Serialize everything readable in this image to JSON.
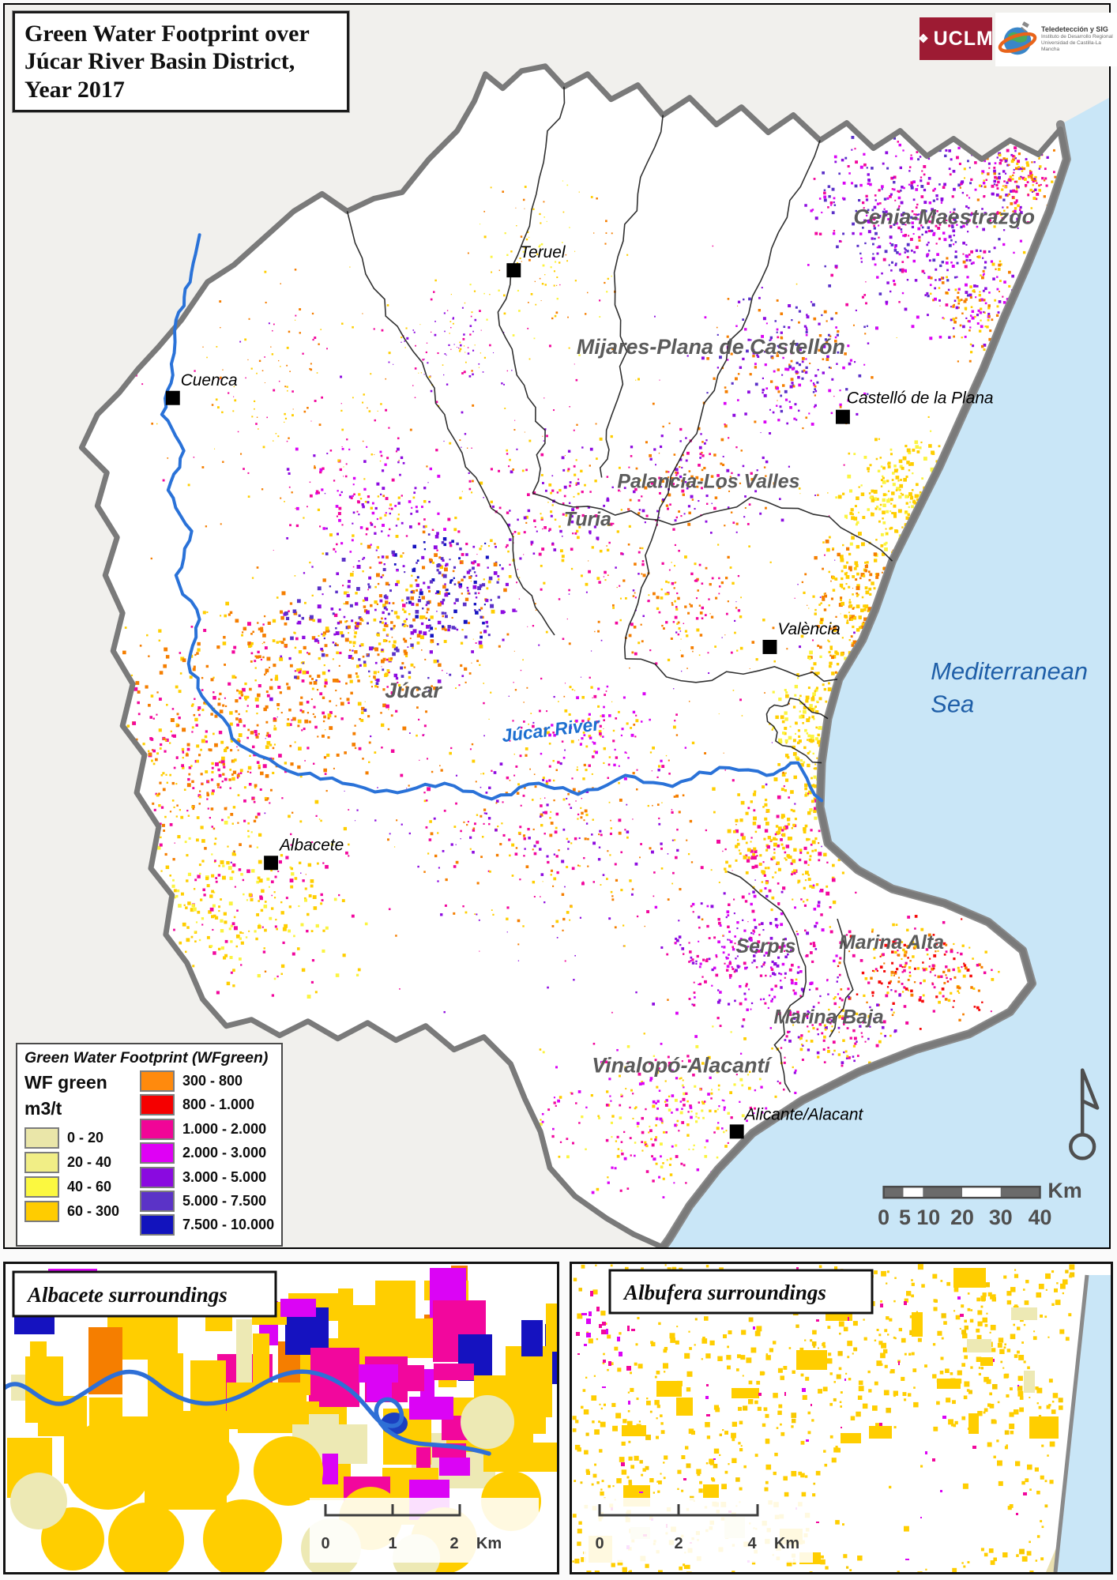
{
  "header": {
    "title_lines": [
      "Green Water Footprint over",
      "Júcar River Basin District,",
      "Year 2017"
    ]
  },
  "logos": {
    "uclm_label": "UCLM",
    "uclm_color": "#9D1B33",
    "institute_name": "Teledetección y SIG",
    "institute_line2": "Instituto de Desarrollo Regional",
    "institute_line3": "Universidad de Castilla-La Mancha"
  },
  "map": {
    "sea_label_lines": [
      "Mediterranean",
      "Sea"
    ],
    "river_label": "Júcar River",
    "sea_color": "#C9E6F7",
    "river_color": "#2A72D8",
    "cities": [
      "Teruel",
      "Cuenca",
      "Castelló de la Plana",
      "València",
      "Albacete",
      "Alicante/Alacant"
    ],
    "regions": [
      "Cenia-Maestrazgo",
      "Mijares-Plana de Castellón",
      "Palancia-Los Valles",
      "Turia",
      "Júcar",
      "Serpis",
      "Marina Alta",
      "Marina Baja",
      "Vinalopó-Alacantí"
    ]
  },
  "legend": {
    "title": "Green Water Footprint (WFgreen)",
    "layer_name": "WF green",
    "units": "m3/t",
    "classes": [
      {
        "label": "0 - 20",
        "color": "#EAE6A9"
      },
      {
        "label": "20 - 40",
        "color": "#F1EE86"
      },
      {
        "label": "40 - 60",
        "color": "#FBF840"
      },
      {
        "label": "60 - 300",
        "color": "#FFCC00"
      },
      {
        "label": "300 - 800",
        "color": "#FF8A0D"
      },
      {
        "label": "800 - 1.000",
        "color": "#F50000"
      },
      {
        "label": "1.000 - 2.000",
        "color": "#F10597"
      },
      {
        "label": "2.000 - 3.000",
        "color": "#DF00F5"
      },
      {
        "label": "3.000 - 5.000",
        "color": "#8A0AE0"
      },
      {
        "label": "5.000 - 7.500",
        "color": "#5B33C7"
      },
      {
        "label": "7.500 - 10.000",
        "color": "#1213BD"
      }
    ]
  },
  "scalebar": {
    "labels": [
      "0",
      "5",
      "10",
      "20",
      "30",
      "40"
    ],
    "unit": "Km"
  },
  "insets": [
    {
      "title": "Albacete surroundings",
      "scale_labels": [
        "0",
        "1",
        "2"
      ],
      "unit": "Km"
    },
    {
      "title": "Albufera surroundings",
      "scale_labels": [
        "0",
        "2",
        "4"
      ],
      "unit": "Km"
    }
  ]
}
